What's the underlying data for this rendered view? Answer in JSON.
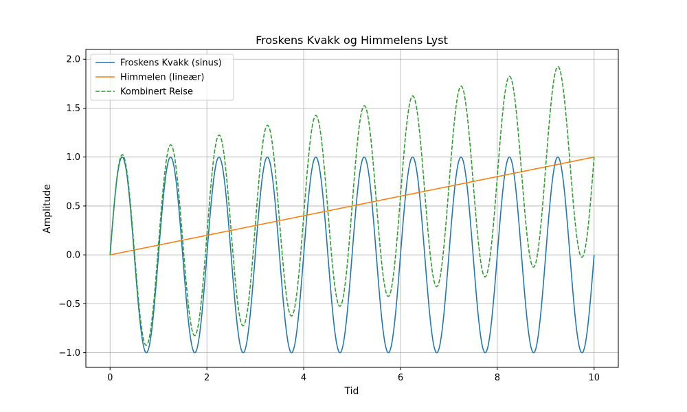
{
  "chart_data": {
    "type": "line",
    "title": "Froskens Kvakk og Himmelens Lyst",
    "xlabel": "Tid",
    "ylabel": "Amplitude",
    "xlim": [
      -0.5,
      10.5
    ],
    "ylim": [
      -1.15,
      2.1
    ],
    "xticks": [
      0,
      2,
      4,
      6,
      8,
      10
    ],
    "yticks": [
      -1.0,
      -0.5,
      0.0,
      0.5,
      1.0,
      1.5,
      2.0
    ],
    "xtick_labels": [
      "0",
      "2",
      "4",
      "6",
      "8",
      "10"
    ],
    "ytick_labels": [
      "−1.0",
      "−0.5",
      "0.0",
      "0.5",
      "1.0",
      "1.5",
      "2.0"
    ],
    "grid": true,
    "legend_position": "upper-left",
    "series": [
      {
        "name": "Froskens Kvakk (sinus)",
        "color": "#1f77b4",
        "style": "solid",
        "formula": "y = sin(2*pi*x)",
        "x_range": [
          0,
          10
        ]
      },
      {
        "name": "Himmelen (lineær)",
        "color": "#ff7f0e",
        "style": "solid",
        "formula": "y = 0.1*x",
        "x_range": [
          0,
          10
        ]
      },
      {
        "name": "Kombinert Reise",
        "color": "#2ca02c",
        "style": "dashed",
        "formula": "y = sin(2*pi*x) + 0.1*x",
        "x_range": [
          0,
          10
        ]
      }
    ]
  }
}
